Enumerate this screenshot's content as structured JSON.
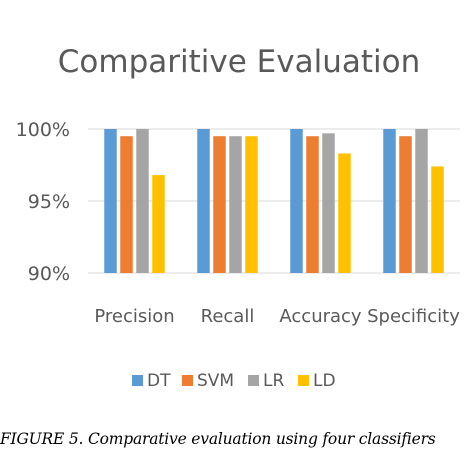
{
  "chart_data": {
    "type": "bar",
    "title": "Comparitive Evaluation",
    "categories": [
      "Precision",
      "Recall",
      "Accuracy",
      "Specificity"
    ],
    "series": [
      {
        "name": "DT",
        "color": "#5B9BD5",
        "values": [
          100.0,
          100.0,
          100.0,
          100.0
        ]
      },
      {
        "name": "SVM",
        "color": "#ED7D31",
        "values": [
          99.5,
          99.5,
          99.5,
          99.5
        ]
      },
      {
        "name": "LR",
        "color": "#A5A5A5",
        "values": [
          100.0,
          99.5,
          99.7,
          100.0
        ]
      },
      {
        "name": "LD",
        "color": "#FFC000",
        "values": [
          96.8,
          99.5,
          98.3,
          97.4
        ]
      }
    ],
    "ylim": [
      90,
      100
    ],
    "yticks": [
      "90%",
      "95%",
      "100%"
    ],
    "grid": true,
    "legend": "bottom",
    "xlabel": "",
    "ylabel": ""
  },
  "caption": "FIGURE 5. Comparative evaluation using four classifiers"
}
